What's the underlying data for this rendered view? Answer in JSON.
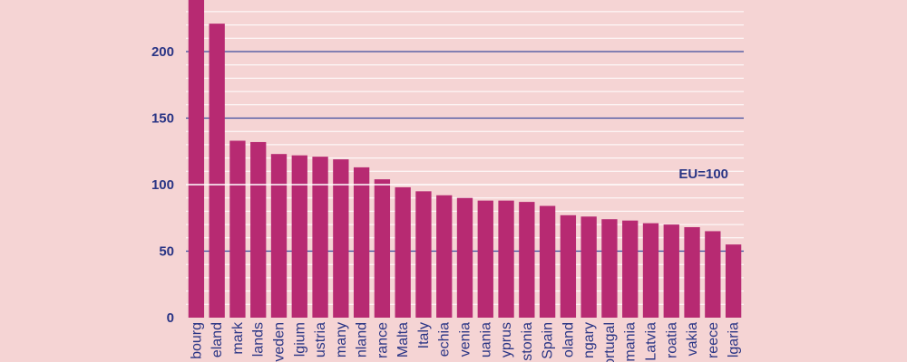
{
  "chart_data": {
    "type": "bar",
    "title": "",
    "xlabel": "",
    "ylabel": "",
    "ylim": [
      0,
      240
    ],
    "yticks": [
      0,
      50,
      100,
      150,
      200
    ],
    "grid": true,
    "categories": [
      "bourg",
      "eland",
      "mark",
      "lands",
      "veden",
      "lgium",
      "ustria",
      "many",
      "nland",
      "rance",
      "Malta",
      "Italy",
      "echia",
      "venia",
      "uania",
      "yprus",
      "stonia",
      "Spain",
      "oland",
      "ngary",
      "ortugal",
      "mania",
      "Latvia",
      "roatia",
      "vakia",
      "reece",
      "lgaria"
    ],
    "values": [
      245,
      221,
      133,
      132,
      123,
      122,
      121,
      119,
      113,
      104,
      98,
      95,
      92,
      90,
      88,
      88,
      87,
      84,
      77,
      76,
      74,
      73,
      71,
      70,
      68,
      65,
      55
    ],
    "reference_line": {
      "label": "EU=100",
      "value": 100
    },
    "colors": {
      "bar": "#b72a72",
      "major_grid": "#3d4c9e",
      "minor_grid": "#ffffff",
      "reference": "#ffffff",
      "axis_text": "#2a3585",
      "background": "#f5d4d4"
    }
  }
}
